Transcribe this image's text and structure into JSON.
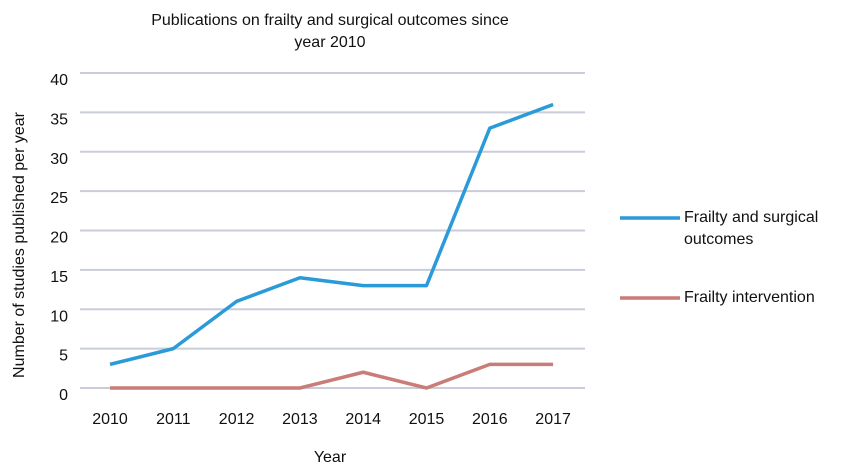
{
  "chart_data": {
    "type": "line",
    "title": "Publications on frailty and surgical outcomes since year 2010",
    "xlabel": "Year",
    "ylabel": "Number of studies published per year",
    "categories": [
      "2010",
      "2011",
      "2012",
      "2013",
      "2014",
      "2015",
      "2016",
      "2017"
    ],
    "series": [
      {
        "name": "Frailty and surgical outcomes",
        "color": "#2a9ad8",
        "values": [
          3,
          5,
          11,
          14,
          13,
          13,
          33,
          36
        ]
      },
      {
        "name": "Frailty intervention",
        "color": "#c97c78",
        "values": [
          0,
          0,
          0,
          0,
          2,
          0,
          3,
          3
        ]
      }
    ],
    "ylim": [
      0,
      40
    ],
    "yticks": [
      0,
      5,
      10,
      15,
      20,
      25,
      30,
      35,
      40
    ],
    "grid": true,
    "legend": "right"
  }
}
